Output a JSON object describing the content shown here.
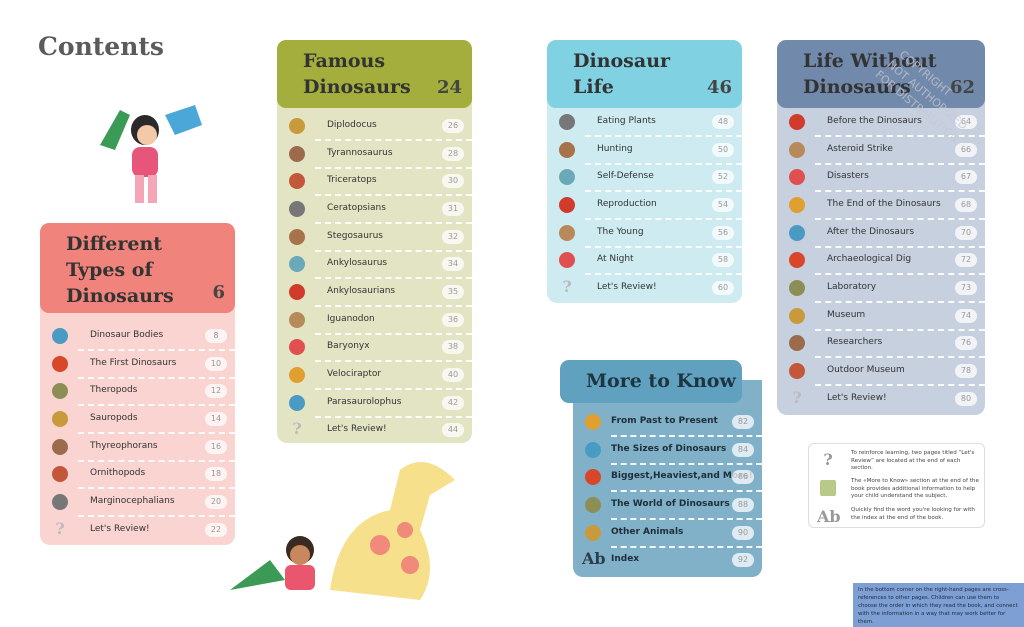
{
  "title": "Contents",
  "sections": [
    {
      "title": "Different Types of Dinosaurs",
      "page": "6",
      "items": [
        {
          "label": "Dinosaur Bodies",
          "page": "8"
        },
        {
          "label": "The First Dinosaurs",
          "page": "10"
        },
        {
          "label": "Theropods",
          "page": "12"
        },
        {
          "label": "Sauropods",
          "page": "14"
        },
        {
          "label": "Thyreophorans",
          "page": "16"
        },
        {
          "label": "Ornithopods",
          "page": "18"
        },
        {
          "label": "Marginocephalians",
          "page": "20"
        },
        {
          "icon": "?",
          "label": "Let's Review!",
          "page": "22"
        }
      ]
    },
    {
      "title": "Famous Dinosaurs",
      "page": "24",
      "items": [
        {
          "label": "Diplodocus",
          "page": "26"
        },
        {
          "label": "Tyrannosaurus",
          "page": "28"
        },
        {
          "label": "Triceratops",
          "page": "30"
        },
        {
          "label": "Ceratopsians",
          "page": "31"
        },
        {
          "label": "Stegosaurus",
          "page": "32"
        },
        {
          "label": "Ankylosaurus",
          "page": "34"
        },
        {
          "label": "Ankylosaurians",
          "page": "35"
        },
        {
          "label": "Iguanodon",
          "page": "36"
        },
        {
          "label": "Baryonyx",
          "page": "38"
        },
        {
          "label": "Velociraptor",
          "page": "40"
        },
        {
          "label": "Parasaurolophus",
          "page": "42"
        },
        {
          "icon": "?",
          "label": "Let's Review!",
          "page": "44"
        }
      ]
    },
    {
      "title": "Dinosaur Life",
      "page": "46",
      "items": [
        {
          "label": "Eating Plants",
          "page": "48"
        },
        {
          "label": "Hunting",
          "page": "50"
        },
        {
          "label": "Self-Defense",
          "page": "52"
        },
        {
          "label": "Reproduction",
          "page": "54"
        },
        {
          "label": "The Young",
          "page": "56"
        },
        {
          "label": "At Night",
          "page": "58"
        },
        {
          "icon": "?",
          "label": "Let's Review!",
          "page": "60"
        }
      ]
    },
    {
      "title": "Life Without Dinosaurs",
      "page": "62",
      "items": [
        {
          "label": "Before the Dinosaurs",
          "page": "64"
        },
        {
          "label": "Asteroid Strike",
          "page": "66"
        },
        {
          "label": "Disasters",
          "page": "67"
        },
        {
          "label": "The End of the Dinosaurs",
          "page": "68"
        },
        {
          "label": "After the Dinosaurs",
          "page": "70"
        },
        {
          "label": "Archaeological Dig",
          "page": "72"
        },
        {
          "label": "Laboratory",
          "page": "73"
        },
        {
          "label": "Museum",
          "page": "74"
        },
        {
          "label": "Researchers",
          "page": "76"
        },
        {
          "label": "Outdoor Museum",
          "page": "78"
        },
        {
          "icon": "?",
          "label": "Let's Review!",
          "page": "80"
        }
      ]
    },
    {
      "title": "More to Know",
      "items": [
        {
          "label": "From Past to Present",
          "page": "82"
        },
        {
          "label": "The Sizes of Dinosaurs",
          "page": "84"
        },
        {
          "label": "Biggest,Heaviest,and More!",
          "page": "86"
        },
        {
          "label": "The World of Dinosaurs",
          "page": "88"
        },
        {
          "label": "Other Animals",
          "page": "90"
        },
        {
          "icon": "Ab",
          "label": "Index",
          "page": "92"
        }
      ]
    }
  ],
  "notes": [
    {
      "icon": "?",
      "text": "To reinforce learning, two pages titled “Let's Review” are located at the end of each section."
    },
    {
      "text": "The «More to Know» section at the end of the book provides additional information to help your child understand the subject."
    },
    {
      "icon": "Ab",
      "text": "Quickly find the word you're looking for with the index at the end of the book."
    }
  ],
  "footnote": "In the bottom corner on the right-hand pages are cross-references to other pages. Children can use them to choose the order in which they read the book, and connect with the information in a way that may work better for them.",
  "watermark": [
    "COPYRIGHT",
    "NOT AUTHORIZED",
    "FOR DISTRIBUTION"
  ]
}
